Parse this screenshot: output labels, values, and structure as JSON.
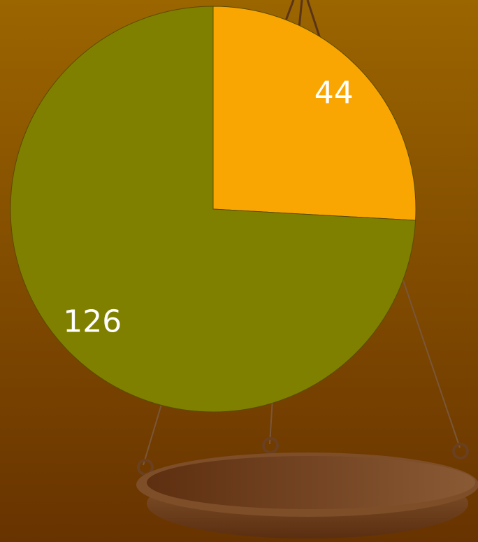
{
  "chart_data": {
    "type": "pie",
    "values": [
      44,
      126
    ],
    "colors": [
      "#f9a602",
      "#808000"
    ],
    "start_angle": 0,
    "direction": "clockwise"
  }
}
